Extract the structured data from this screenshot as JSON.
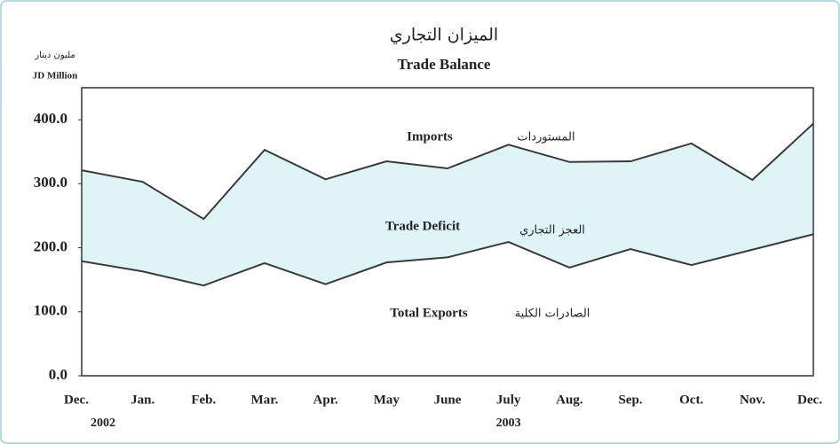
{
  "chart_data": {
    "type": "line",
    "title": "الميزان التجاري",
    "subtitle": "Trade Balance",
    "y_label_ar": "مليون دينار",
    "y_label": "JD Million",
    "categories": [
      "Dec.",
      "Jan.",
      "Feb.",
      "Mar.",
      "Apr.",
      "May",
      "June",
      "July",
      "Aug.",
      "Sep.",
      "Oct.",
      "Nov.",
      "Dec."
    ],
    "year_labels": [
      "2002",
      null,
      null,
      null,
      null,
      null,
      null,
      "2003",
      null,
      null,
      null,
      null,
      null
    ],
    "series": [
      {
        "name": "Imports",
        "name_ar": "المستوردات",
        "color": "#3a3a3a",
        "values": [
          321,
          303,
          245,
          353,
          307,
          335,
          324,
          361,
          334,
          335,
          363,
          306,
          394
        ]
      },
      {
        "name": "Total Exports",
        "name_ar": "الصادرات الكلية",
        "color": "#3a3a3a",
        "values": [
          179,
          163,
          141,
          176,
          143,
          177,
          185,
          209,
          169,
          198,
          173,
          197,
          221
        ]
      }
    ],
    "fill_between": {
      "name": "Trade Deficit",
      "name_ar": "العجز التجاري",
      "color": "#def4f7"
    },
    "ylim": [
      0,
      450
    ],
    "yticks": [
      {
        "value": 0,
        "label": "0.0"
      },
      {
        "value": 100,
        "label": "100.0"
      },
      {
        "value": 200,
        "label": "200.0"
      },
      {
        "value": 300,
        "label": "300.0"
      },
      {
        "value": 400,
        "label": "400.0"
      }
    ]
  }
}
